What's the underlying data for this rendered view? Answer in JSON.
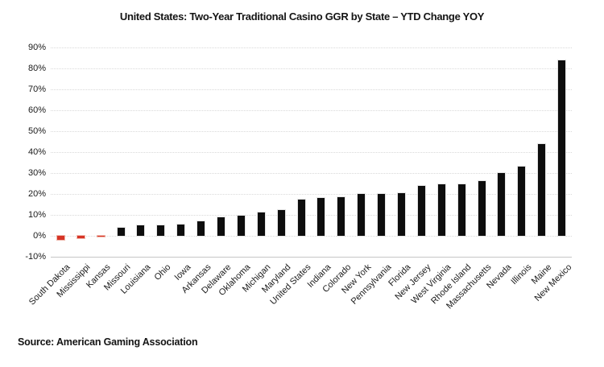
{
  "page": {
    "background": "#ffffff"
  },
  "title": "United States: Two-Year Traditional Casino GGR by State – YTD Change YOY",
  "source": "Source: American Gaming Association",
  "chart_data": {
    "type": "bar",
    "title": "United States: Two-Year Traditional Casino GGR by State – YTD Change YOY",
    "source": "Source: American Gaming Association",
    "categories": [
      "South Dakota",
      "Mississippi",
      "Kansas",
      "Missouri",
      "Louisiana",
      "Ohio",
      "Iowa",
      "Arkansas",
      "Delaware",
      "Oklahoma",
      "Michigan",
      "Maryland",
      "United States",
      "Indiana",
      "Colorado",
      "New York",
      "Pennsylvania",
      "Florida",
      "New Jersey",
      "West Virginia",
      "Rhode Island",
      "Massachusetts",
      "Nevada",
      "Illinois",
      "Maine",
      "New Mexico"
    ],
    "values": [
      -2,
      -1,
      -0.3,
      4,
      5,
      5,
      5.5,
      7,
      9,
      9.5,
      11,
      12.5,
      17.5,
      18,
      18.5,
      20,
      20,
      20.5,
      24,
      24.5,
      24.5,
      26,
      30,
      33,
      44,
      84
    ],
    "value_unit": "%",
    "xlabel": "",
    "ylabel": "",
    "ylim": [
      -10,
      90
    ],
    "ytick_step": 10,
    "ytick_labels": [
      "90%",
      "80%",
      "70%",
      "60%",
      "50%",
      "40%",
      "30%",
      "20%",
      "10%",
      "0%",
      "-10%"
    ],
    "grid": "horizontal-dotted",
    "legend": "none",
    "bar_color": "#0d0d0d",
    "negative_bar_color": "#d63426",
    "gridline_color": "#d9d9d9",
    "axis_line_color": "#c6c6c6",
    "text_color": "#1a1a1a"
  }
}
